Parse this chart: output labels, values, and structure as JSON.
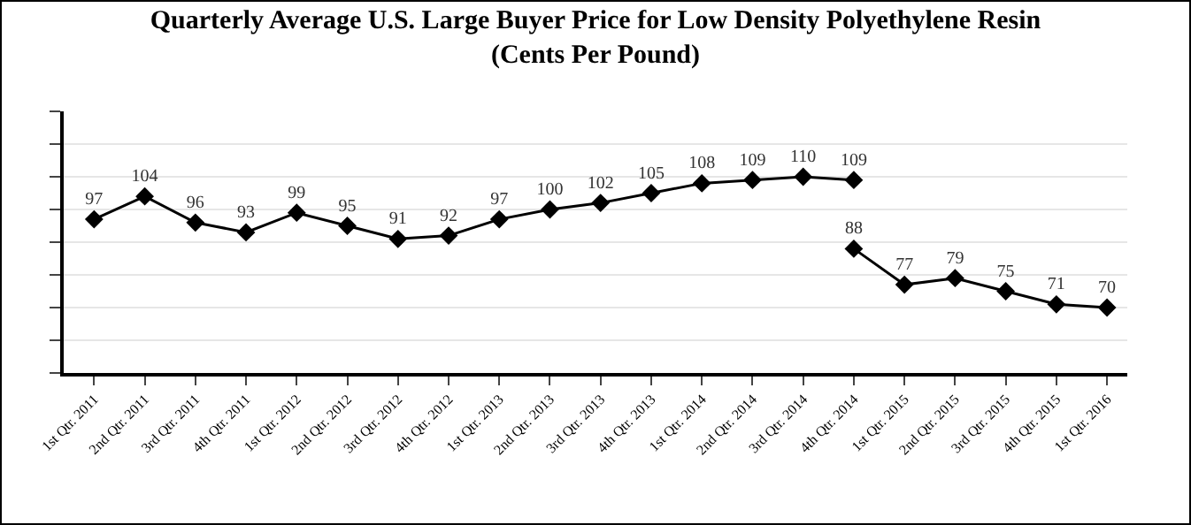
{
  "chart_data": {
    "type": "line",
    "title": "Quarterly Average U.S. Large Buyer Price for Low Density Polyethylene Resin\n(Cents Per Pound)",
    "categories": [
      "1st Qtr. 2011",
      "2nd Qtr. 2011",
      "3rd Qtr. 2011",
      "4th Qtr. 2011",
      "1st Qtr. 2012",
      "2nd Qtr. 2012",
      "3rd Qtr. 2012",
      "4th Qtr. 2012",
      "1st Qtr. 2013",
      "2nd Qtr. 2013",
      "3rd Qtr. 2013",
      "4th Qtr. 2013",
      "1st Qtr. 2014",
      "2nd Qtr. 2014",
      "3rd Qtr. 2014",
      "4th Qtr. 2014",
      "1st Qtr. 2015",
      "2nd Qtr. 2015",
      "3rd Qtr. 2015",
      "4th Qtr. 2015",
      "1st Qtr. 2016"
    ],
    "series": [
      {
        "color": "#000000",
        "values": [
          97,
          104,
          96,
          93,
          99,
          95,
          91,
          92,
          97,
          100,
          102,
          105,
          108,
          109,
          110,
          109,
          null,
          null,
          null,
          null,
          null
        ]
      },
      {
        "color": "#000000",
        "values": [
          null,
          null,
          null,
          null,
          null,
          null,
          null,
          null,
          null,
          null,
          null,
          null,
          null,
          null,
          null,
          88,
          77,
          79,
          75,
          71,
          70
        ]
      }
    ],
    "ylim": [
      50,
      130
    ],
    "yticks": [
      {
        "value": 50,
        "label": null
      },
      {
        "value": 60,
        "label": null
      },
      {
        "value": 70,
        "label": null
      },
      {
        "value": 80,
        "label": null
      },
      {
        "value": 90,
        "label": null
      },
      {
        "value": 100,
        "label": null
      },
      {
        "value": 110,
        "label": null
      },
      {
        "value": 120,
        "label": null
      },
      {
        "value": 130,
        "label": null
      }
    ],
    "tick_labels": "x",
    "grid": "y",
    "marker": "diamond",
    "line_style": "solid",
    "data_labels": true
  }
}
